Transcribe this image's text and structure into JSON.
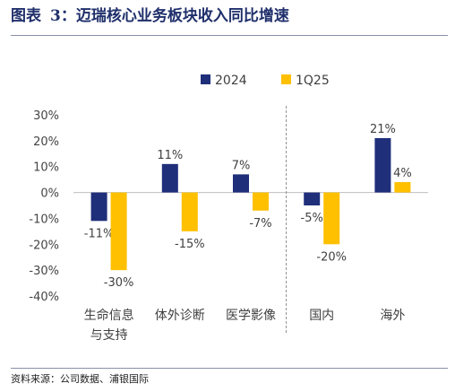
{
  "header": {
    "label": "图表",
    "number": "3：",
    "text": "迈瑞核心业务板块收入同比增速"
  },
  "footer": {
    "source": "资料来源：公司数据、浦银国际"
  },
  "colors": {
    "series_2024": "#1f2f7a",
    "series_1q25": "#ffc000",
    "title": "#1f2f6b"
  },
  "chart_data": {
    "type": "bar",
    "categories": [
      "生命信息与支持",
      "体外诊断",
      "医学影像",
      "国内",
      "海外"
    ],
    "category_lines": [
      [
        "生命信息",
        "与支持"
      ],
      [
        "体外诊断"
      ],
      [
        "医学影像"
      ],
      [
        "国内"
      ],
      [
        "海外"
      ]
    ],
    "series": [
      {
        "name": "2024",
        "values": [
          -11,
          11,
          7,
          -5,
          21
        ],
        "labels": [
          "-11%",
          "11%",
          "7%",
          "-5%",
          "21%"
        ]
      },
      {
        "name": "1Q25",
        "values": [
          -30,
          -15,
          -7,
          -20,
          4
        ],
        "labels": [
          "-30%",
          "-15%",
          "-7%",
          "-20%",
          "4%"
        ]
      }
    ],
    "yticks": [
      30,
      20,
      10,
      0,
      -10,
      -20,
      -30,
      -40
    ],
    "ytick_labels": [
      "30%",
      "20%",
      "10%",
      "0%",
      "-10%",
      "-20%",
      "-30%",
      "-40%"
    ],
    "ylim": [
      -40,
      30
    ],
    "grid": false,
    "legend_position": "top-center",
    "divider_after_category": 3
  }
}
